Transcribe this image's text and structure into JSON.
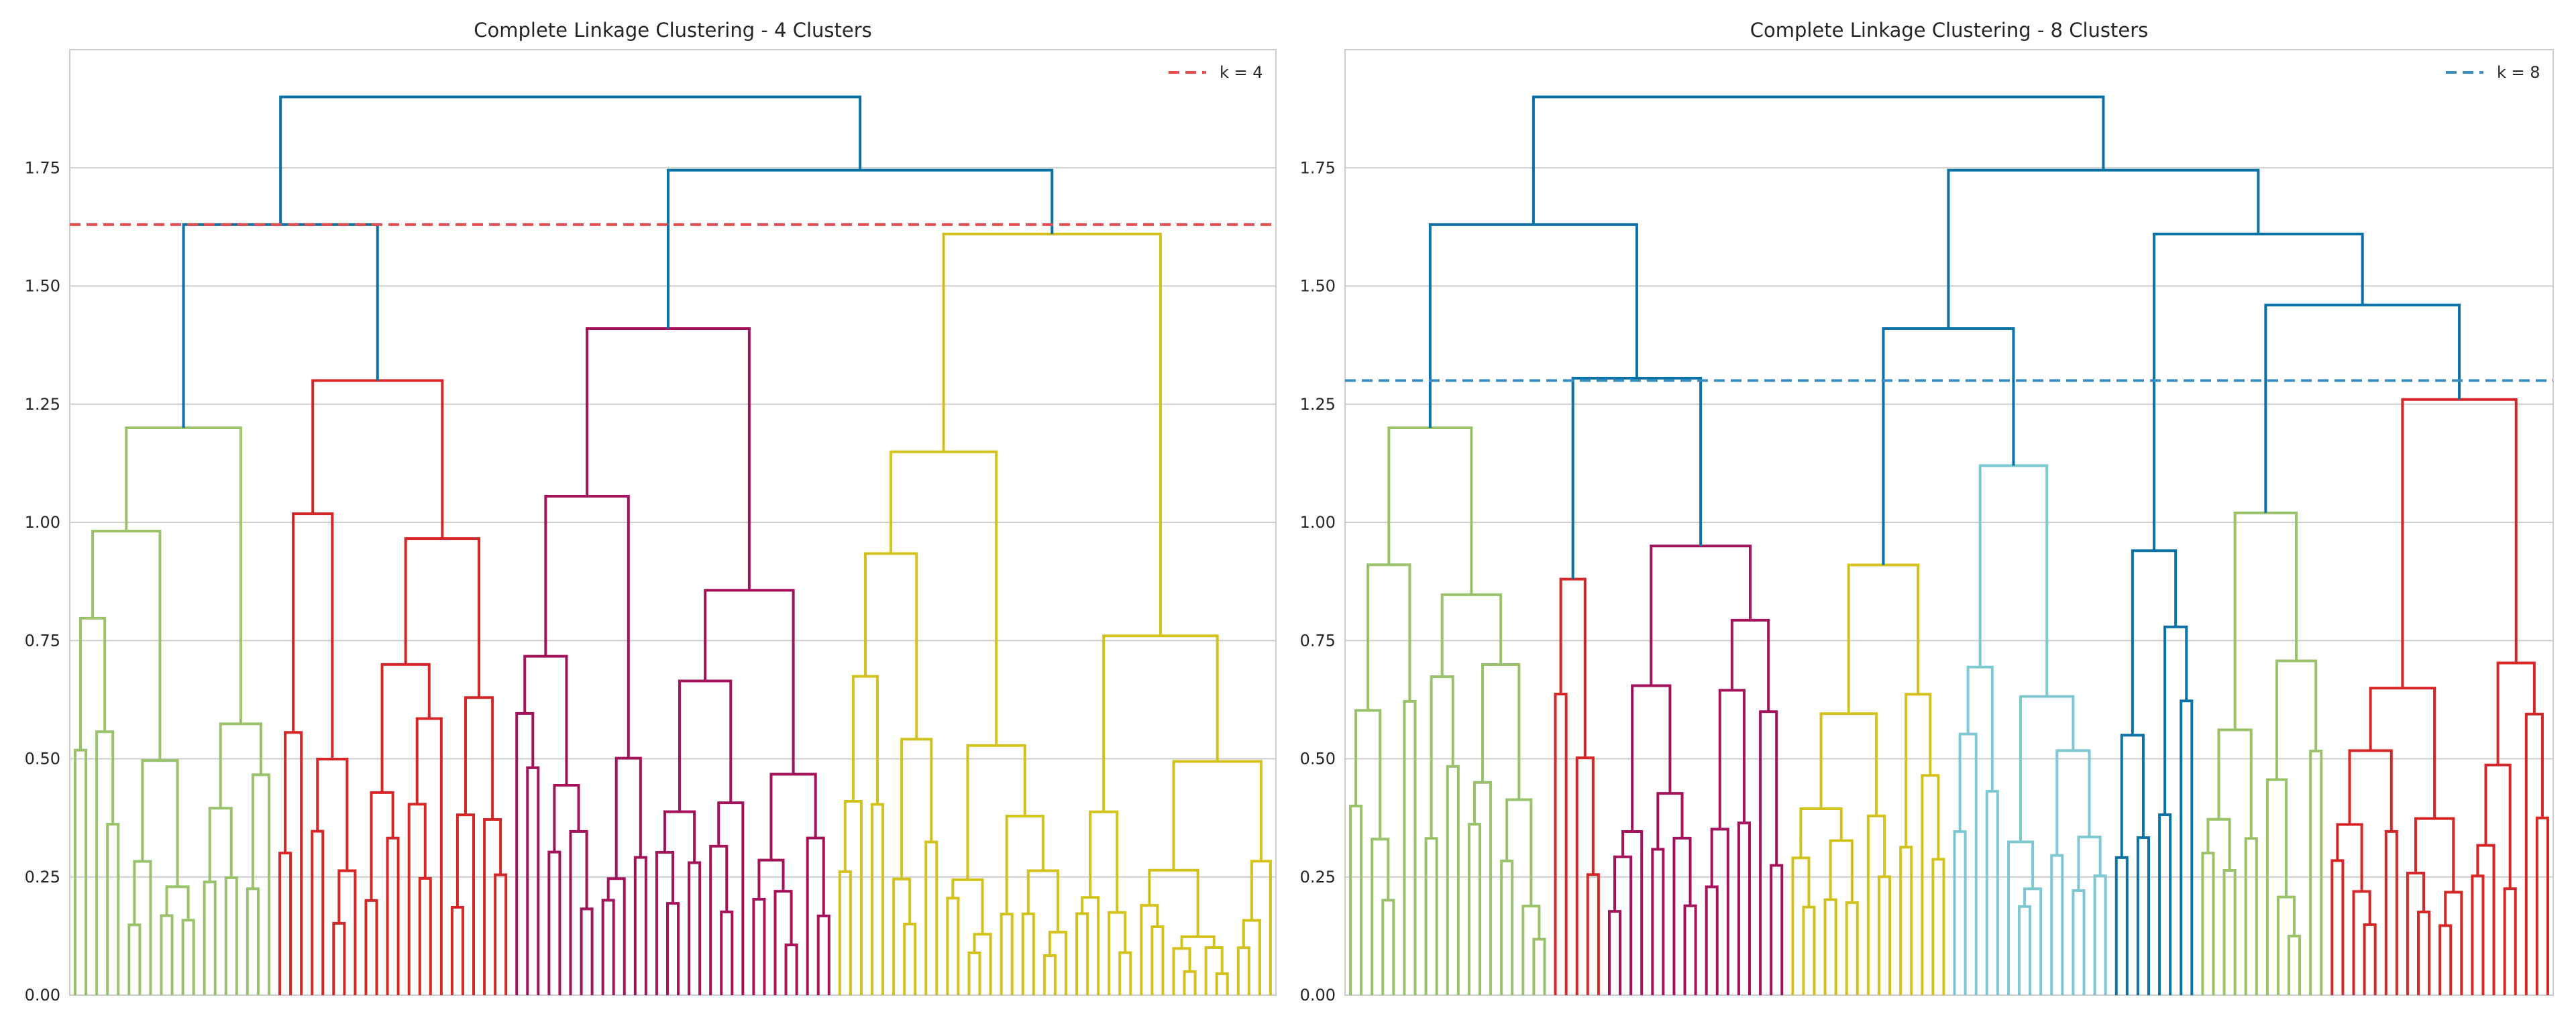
{
  "chart_data": [
    {
      "type": "dendrogram",
      "title": "Complete Linkage Clustering - 4 Clusters",
      "ylim": [
        0,
        2.0
      ],
      "yticks": [
        "0.00",
        "0.25",
        "0.50",
        "0.75",
        "1.00",
        "1.25",
        "1.50",
        "1.75"
      ],
      "grid": true,
      "legend": {
        "label": "k = 4",
        "placement": "top-right",
        "style": "dashed",
        "color": "#e84d4d"
      },
      "threshold": 1.63,
      "root_merge_height": 1.9,
      "clusters": [
        {
          "color": "#9ac26b",
          "leaves": 19,
          "top_merge": 1.2
        },
        {
          "color": "#d62728",
          "leaves": 22,
          "top_merge": 1.3
        },
        {
          "color": "#a3125b",
          "leaves": 30,
          "top_merge": 1.41
        },
        {
          "color": "#d4c21c",
          "leaves": 41,
          "top_merge": 1.61
        }
      ],
      "link_color_above_cut": "#0a72a6"
    },
    {
      "type": "dendrogram",
      "title": "Complete Linkage Clustering - 8 Clusters",
      "ylim": [
        0,
        2.0
      ],
      "yticks": [
        "0.00",
        "0.25",
        "0.50",
        "0.75",
        "1.00",
        "1.25",
        "1.50",
        "1.75"
      ],
      "grid": true,
      "legend": {
        "label": "k = 8",
        "placement": "top-right",
        "style": "dashed",
        "color": "#3a8fbf"
      },
      "threshold": 1.3,
      "root_merge_height": 1.9,
      "clusters": [
        {
          "color": "#9ac26b",
          "leaves": 19,
          "top_merge": 1.2
        },
        {
          "color": "#d62728",
          "leaves": 5,
          "top_merge": 0.88
        },
        {
          "color": "#a3125b",
          "leaves": 17,
          "top_merge": 0.95
        },
        {
          "color": "#d4c21c",
          "leaves": 15,
          "top_merge": 0.91
        },
        {
          "color": "#7ec8d2",
          "leaves": 15,
          "top_merge": 1.12
        },
        {
          "color": "#0a72a6",
          "leaves": 8,
          "top_merge": 0.94
        },
        {
          "color": "#9ac26b",
          "leaves": 12,
          "top_merge": 1.02
        },
        {
          "color": "#d62728",
          "leaves": 21,
          "top_merge": 1.26
        }
      ],
      "link_color_above_cut": "#0a72a6"
    }
  ]
}
